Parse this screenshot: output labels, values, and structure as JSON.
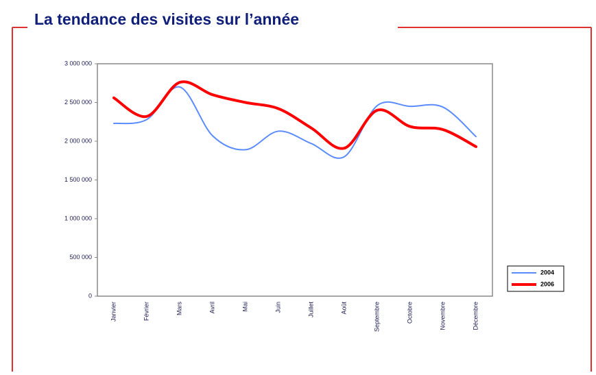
{
  "chart_data": {
    "type": "line",
    "title": "La tendance des visites sur l’année",
    "categories": [
      "Janvier",
      "Février",
      "Mars",
      "Avril",
      "Mai",
      "Juin",
      "Juillet",
      "Août",
      "Septembre",
      "Octobre",
      "Novembre",
      "Décembre"
    ],
    "series": [
      {
        "name": "2004",
        "color": "#5a8cff",
        "values": [
          2230000,
          2280000,
          2700000,
          2070000,
          1890000,
          2130000,
          1970000,
          1800000,
          2460000,
          2450000,
          2440000,
          2060000
        ]
      },
      {
        "name": "2006",
        "color": "#ff0000",
        "values": [
          2560000,
          2320000,
          2760000,
          2600000,
          2500000,
          2420000,
          2170000,
          1910000,
          2400000,
          2190000,
          2150000,
          1930000
        ]
      }
    ],
    "ylim": [
      0,
      3000000
    ],
    "yticks": [
      {
        "value": 0,
        "label": "0"
      },
      {
        "value": 500000,
        "label": "500 000"
      },
      {
        "value": 1000000,
        "label": "1 000 000"
      },
      {
        "value": 1500000,
        "label": "1 500 000"
      },
      {
        "value": 2000000,
        "label": "2 000 000"
      },
      {
        "value": 2500000,
        "label": "2 500 000"
      },
      {
        "value": 3000000,
        "label": "3 000 000"
      }
    ],
    "grid": false,
    "legend": "right"
  }
}
